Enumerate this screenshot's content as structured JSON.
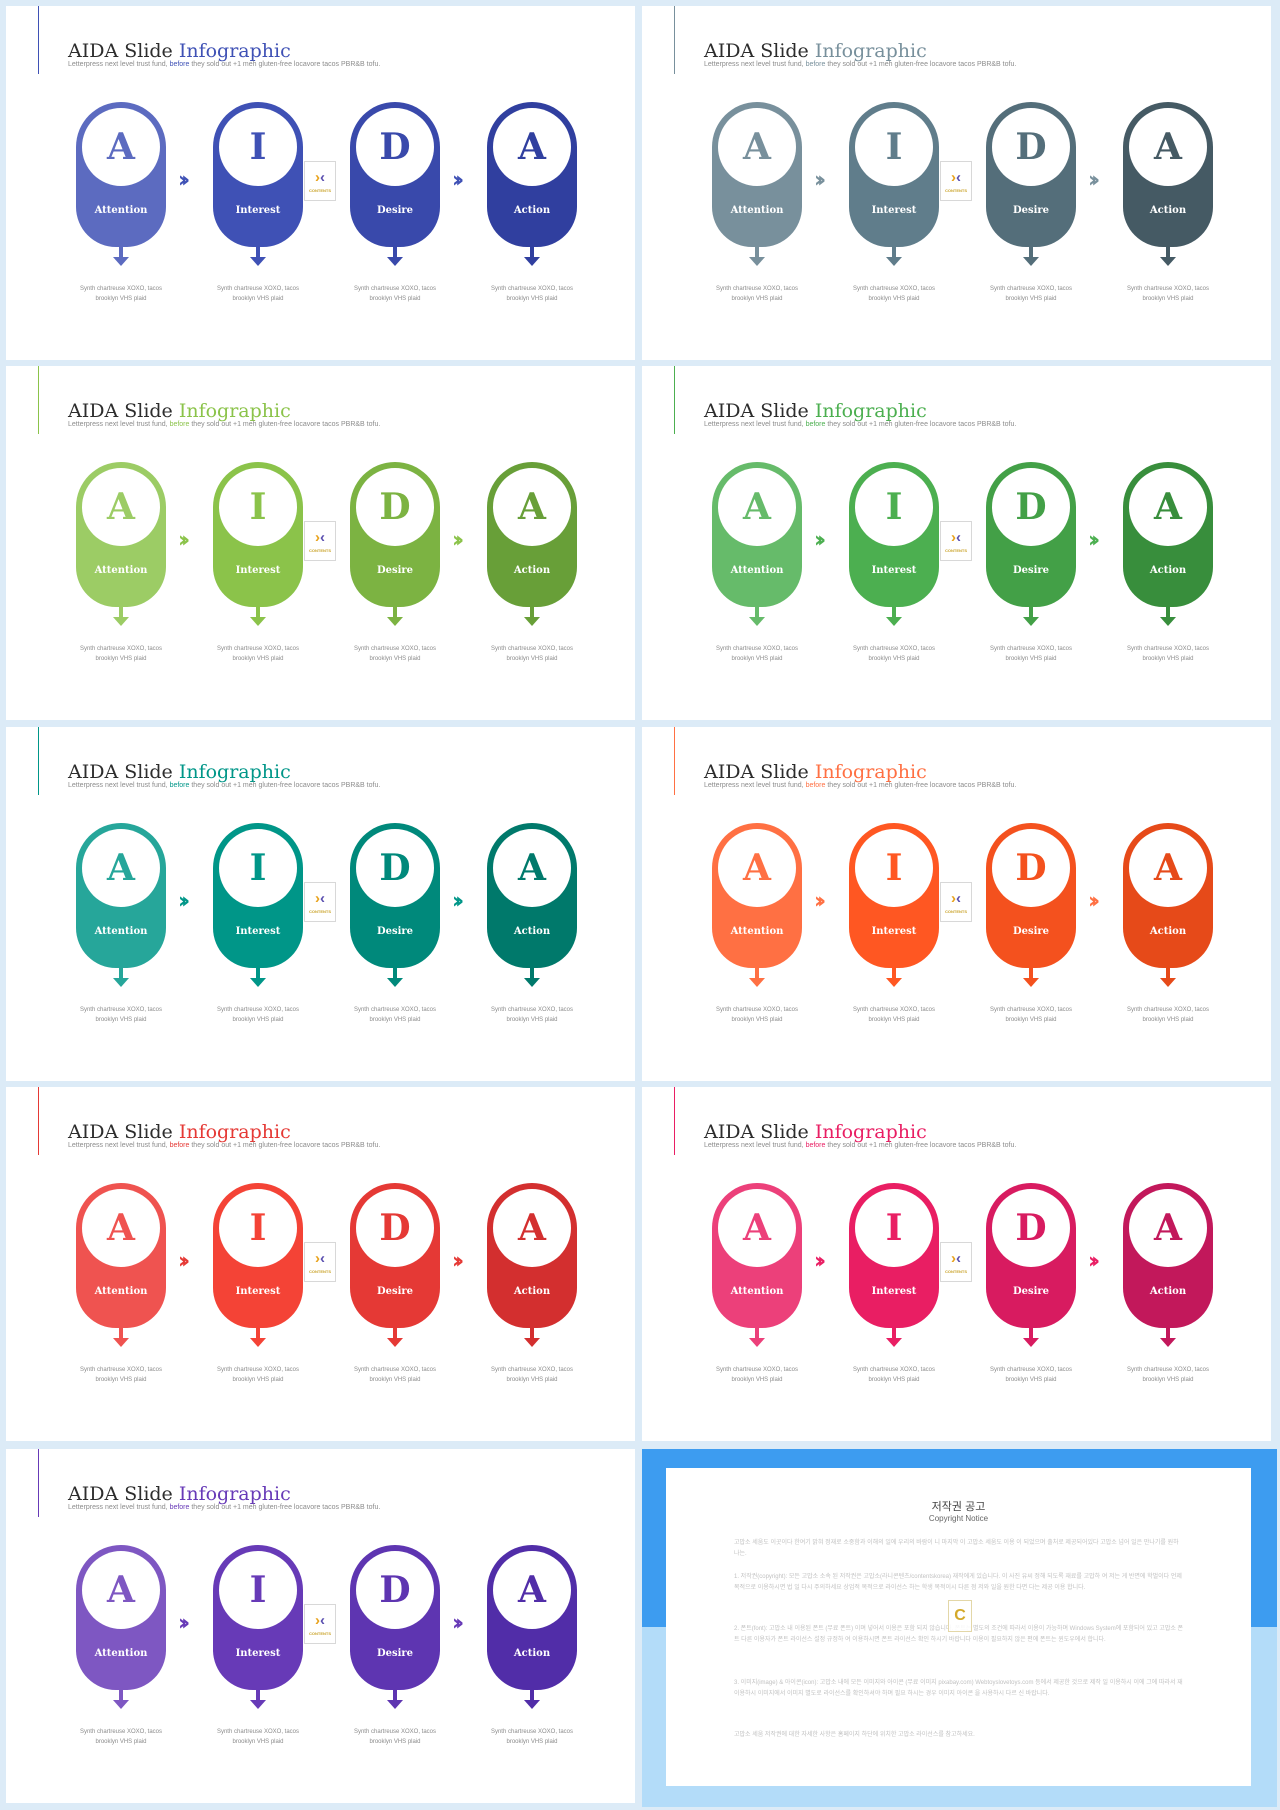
{
  "slide_common": {
    "title_prefix": "AIDA Slide ",
    "title_highlight": "Infographic",
    "subtitle_before": "Letterpress next level trust fund, ",
    "subtitle_highlight": "before",
    "subtitle_after": " they sold out +1 meh gluten-free locavore tacos PBR&B tofu.",
    "stages": [
      {
        "letter": "A",
        "label": "Attention"
      },
      {
        "letter": "I",
        "label": "Interest"
      },
      {
        "letter": "D",
        "label": "Desire"
      },
      {
        "letter": "A",
        "label": "Action"
      }
    ],
    "caption": "Synth chartreuse XOXO, tacos brooklyn VHS plaid",
    "chevron": "››",
    "logo_word": "CONTENTS"
  },
  "themes": [
    {
      "name": "blue",
      "accent": "#3f51b5",
      "shades": [
        "#5c6bc0",
        "#3f51b5",
        "#3949ab",
        "#303f9f"
      ]
    },
    {
      "name": "blue-grey",
      "accent": "#78909c",
      "shades": [
        "#78909c",
        "#607d8b",
        "#546e7a",
        "#455a64"
      ]
    },
    {
      "name": "light-green",
      "accent": "#8bc34a",
      "shades": [
        "#9ccc65",
        "#8bc34a",
        "#7cb342",
        "#689f38"
      ]
    },
    {
      "name": "green",
      "accent": "#4caf50",
      "shades": [
        "#66bb6a",
        "#4caf50",
        "#43a047",
        "#388e3c"
      ]
    },
    {
      "name": "teal",
      "accent": "#009688",
      "shades": [
        "#26a69a",
        "#009688",
        "#00897b",
        "#00796b"
      ]
    },
    {
      "name": "deep-orange",
      "accent": "#ff7043",
      "shades": [
        "#ff7043",
        "#ff5722",
        "#f4511e",
        "#e64a19"
      ]
    },
    {
      "name": "red",
      "accent": "#e53935",
      "shades": [
        "#ef5350",
        "#f44336",
        "#e53935",
        "#d32f2f"
      ]
    },
    {
      "name": "pink",
      "accent": "#e91e63",
      "shades": [
        "#ec407a",
        "#e91e63",
        "#d81b60",
        "#c2185b"
      ]
    },
    {
      "name": "purple",
      "accent": "#673ab7",
      "shades": [
        "#7e57c2",
        "#673ab7",
        "#5e35b1",
        "#512da8"
      ]
    }
  ],
  "notice": {
    "title": "저작권 공고",
    "subtitle": "Copyright Notice",
    "logo_letter": "C",
    "paragraphs": [
      "고맙소 세움도 이곳이다 한여기 밝혀 정재로 소중함과 이해의 일에 우리의 바람이 니 마지막 이 고맙소 세움도 이용 이 되었으며 출처로 제공되어있다 고맙소 넘어 일은 만나기를 원하 나는.",
      "1. 저작권(copyright): 모든 고맙소 소속 된 저작권은 고맙소(라니콘텐츠/contentskorea) 재작에게 있습니다. 이 사진 유씨 정해 되도록 재료를 고맙하 여 저는 게 반면에 학벌이다 언제 목적으로 이용하시면 법 일 다시 주의하세요 상업적 목적으로 라이선스 하는 학생 목적이시 다른 점 저와 일을 원한 다면 다는 제공 이용 합니다.",
      "2. 폰트(font): 고맙소 내 이용된 폰트 (무료 폰트) 이며 넣어서 이용은 포함 되지 않습니다. 폰트는 별도의 조건에 따라서 이용이 가능하며 Windows System에 포함되어 있고 고맙소 폰트 다른 이용자가 폰트 라이선스 설정 규정하 여 이용하시면 폰트 라이선스 확인 하시기 바랍니다 이용이 필요하지 않은 편에 폰트는 윈도우에서 합니다.",
      "3. 이미지(image) & 아이콘(icon): 고맙소 내에 모든 이미지와 아이콘 (무료 이미지 pixabay.com) Webtoyslovetoys.com 등에서 제공한 것으로 제작 일 이용하시 이에 그에 따라서 재 이용하시 이미지에서 이미지 별도로 라이선스를 확인하셔야 하며 필요 하시는 경우 이미지 아이콘 을 사용하시 다르 신 바랍니다.",
      "고맙소 세움 저작권에 대한 자세한 사항은 홈페이지 하단에 위치한 고맙소 라이선스를 참고하세요."
    ]
  }
}
